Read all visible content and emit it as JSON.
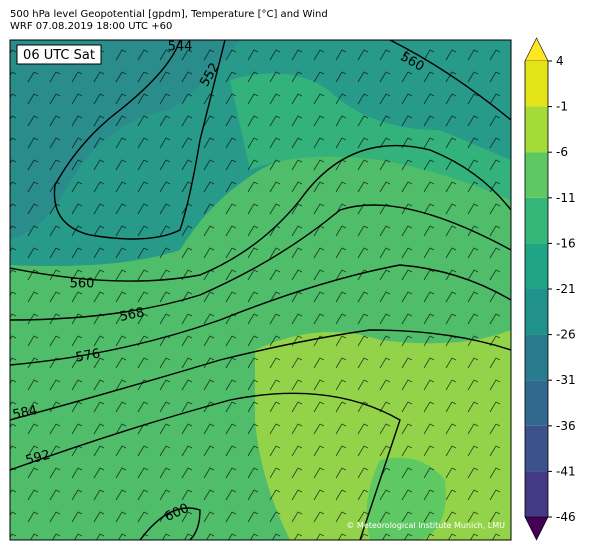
{
  "header": {
    "title": "500 hPa level Geopotential [gpdm], Temperature [°C] and Wind",
    "subtitle": "WRF 07.08.2019 18:00 UTC +60"
  },
  "map": {
    "time_label": "06 UTC Sat",
    "credit": "© Meteorological Institute Munich, LMU",
    "contour_labels": [
      "544",
      "552",
      "560",
      "560",
      "568",
      "576",
      "584",
      "592",
      "600"
    ]
  },
  "colorbar": {
    "ticks": [
      4,
      -1,
      -6,
      -11,
      -16,
      -21,
      -26,
      -31,
      -36,
      -41,
      -46
    ],
    "colors": [
      "#fde725",
      "#e2e418",
      "#a5db36",
      "#5ec962",
      "#35b779",
      "#20a486",
      "#21918c",
      "#287c8e",
      "#31688e",
      "#3b528b",
      "#443983",
      "#482475",
      "#440154"
    ]
  }
}
